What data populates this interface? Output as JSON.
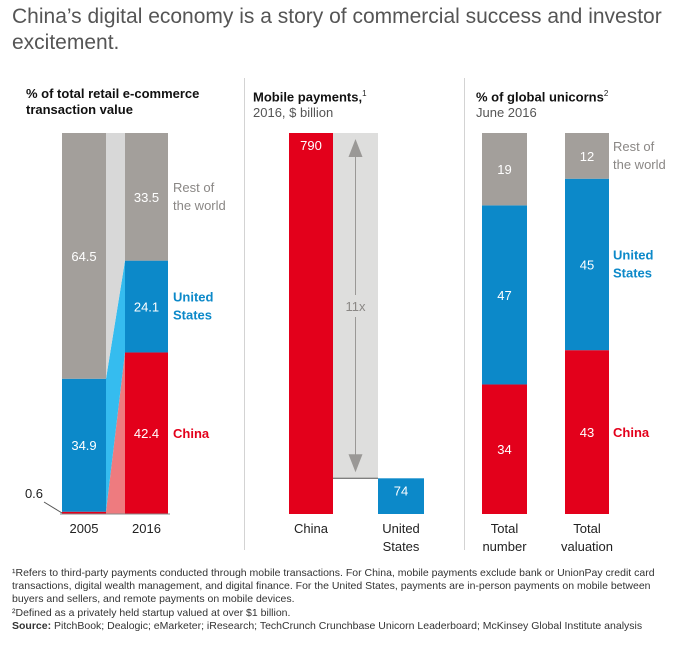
{
  "title": "China’s digital economy is a story of commercial success and investor excitement.",
  "colors": {
    "china": "#e3001b",
    "us": "#0c89c9",
    "rest": "#a39f9b",
    "arrow_band": "#dededd",
    "text_dark": "#222222",
    "text_grey": "#8a8785"
  },
  "panels": [
    {
      "heading": "% of total retail e-commerce transaction value",
      "sub": "",
      "sup": ""
    },
    {
      "heading": "Mobile payments,",
      "sub": "2016, $ billion",
      "sup": "1"
    },
    {
      "heading": "% of global unicorns",
      "sub": "June 2016",
      "sup": "2"
    }
  ],
  "chart_data": [
    {
      "type": "bar",
      "stacked": true,
      "title": "% of total retail e-commerce transaction value",
      "categories": [
        "2005",
        "2016"
      ],
      "series": [
        {
          "name": "China",
          "values": [
            0.6,
            42.4
          ],
          "color": "#e3001b"
        },
        {
          "name": "United States",
          "values": [
            34.9,
            24.1
          ],
          "color": "#0c89c9"
        },
        {
          "name": "Rest of the world",
          "values": [
            64.5,
            33.5
          ],
          "color": "#a39f9b"
        }
      ],
      "ylim": [
        0,
        100
      ]
    },
    {
      "type": "bar",
      "title": "Mobile payments, 2016, $ billion",
      "categories": [
        "China",
        "United States"
      ],
      "values": [
        790,
        74
      ],
      "colors": [
        "#e3001b",
        "#0c89c9"
      ],
      "annotation": "11x",
      "ylim": [
        0,
        790
      ]
    },
    {
      "type": "bar",
      "stacked": true,
      "title": "% of global unicorns, June 2016",
      "categories": [
        "Total number",
        "Total valuation"
      ],
      "series": [
        {
          "name": "China",
          "values": [
            34,
            43
          ],
          "color": "#e3001b"
        },
        {
          "name": "United States",
          "values": [
            47,
            45
          ],
          "color": "#0c89c9"
        },
        {
          "name": "Rest of the world",
          "values": [
            19,
            12
          ],
          "color": "#a39f9b"
        }
      ],
      "ylim": [
        0,
        100
      ]
    }
  ],
  "labels": {
    "rest_of_world": [
      "Rest of",
      "the world"
    ],
    "united_states": [
      "United",
      "States"
    ],
    "china": "China",
    "cat_2005": "2005",
    "cat_2016": "2016",
    "mp_china": "China",
    "mp_us": [
      "United",
      "States"
    ],
    "un_total_number": [
      "Total",
      "number"
    ],
    "un_total_valuation": [
      "Total",
      "valuation"
    ]
  },
  "footnotes": {
    "fn1": "¹Refers to third-party payments conducted through mobile transactions. For China, mobile payments exclude bank or UnionPay credit card transactions, digital wealth management, and digital finance. For the United States, payments are in-person payments on mobile between buyers and sellers, and remote payments on mobile devices.",
    "fn2": "²Defined as a privately held startup valued at over $1 billion.",
    "source_label": "Source:",
    "source_text": " PitchBook; Dealogic; eMarketer; iResearch; TechCrunch Crunchbase Unicorn Leaderboard; McKinsey Global Institute analysis"
  }
}
